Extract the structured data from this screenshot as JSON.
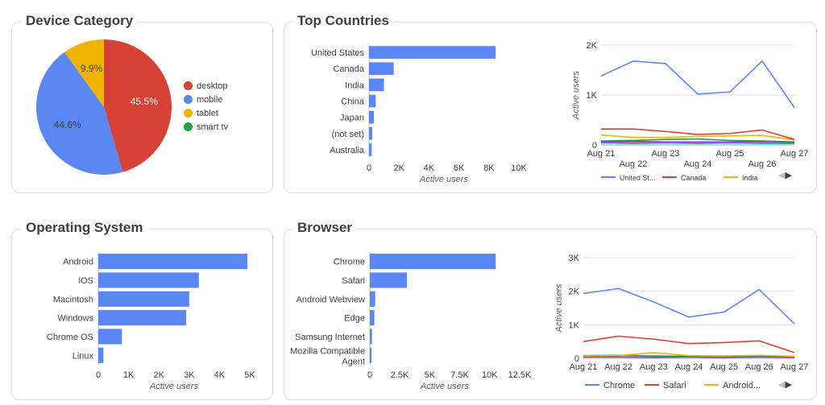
{
  "titles": {
    "device": "Device Category",
    "countries": "Top Countries",
    "os": "Operating System",
    "browser": "Browser"
  },
  "colors": {
    "blue": "#5b87f2",
    "red": "#d64236",
    "yellow": "#f0b400",
    "green": "#1e9e52",
    "grid": "#e0e0e0",
    "axis": "#5f6368"
  },
  "chart_data": [
    {
      "id": "device",
      "type": "pie",
      "title": "Device Category",
      "legend_position": "right",
      "categories": [
        "desktop",
        "mobile",
        "tablet",
        "smart tv"
      ],
      "values": [
        45.5,
        44.6,
        9.9,
        0.0
      ],
      "data_labels": [
        "45.5%",
        "44.6%",
        "9.9%",
        ""
      ],
      "colors": [
        "#d64236",
        "#5b87f2",
        "#f0b400",
        "#1e9e52"
      ]
    },
    {
      "id": "countries",
      "type": "bar",
      "orientation": "horizontal",
      "title": "Top Countries",
      "categories": [
        "United States",
        "Canada",
        "India",
        "China",
        "Japan",
        "(not set)",
        "Australia"
      ],
      "values": [
        8450,
        1650,
        1000,
        450,
        330,
        220,
        180
      ],
      "xlabel": "Active users",
      "xlim": [
        0,
        10000
      ],
      "xticks": [
        0,
        2000,
        4000,
        6000,
        8000,
        10000
      ],
      "xtick_labels": [
        "0",
        "2K",
        "4K",
        "6K",
        "8K",
        "10K"
      ],
      "grid": false
    },
    {
      "id": "countries_trend",
      "type": "line",
      "x": [
        "Aug 21",
        "Aug 22",
        "Aug 23",
        "Aug 24",
        "Aug 25",
        "Aug 26",
        "Aug 27"
      ],
      "ylabel": "Active users",
      "ylim": [
        0,
        2000
      ],
      "yticks": [
        0,
        1000,
        2000
      ],
      "ytick_labels": [
        "0",
        "1K",
        "2K"
      ],
      "grid": true,
      "legend_position": "bottom",
      "series": [
        {
          "name": "United St...",
          "color": "#5b87f2",
          "values": [
            1380,
            1680,
            1630,
            1020,
            1060,
            1680,
            750
          ]
        },
        {
          "name": "Canada",
          "color": "#d64236",
          "values": [
            320,
            320,
            270,
            210,
            230,
            300,
            110
          ]
        },
        {
          "name": "India",
          "color": "#f0b400",
          "values": [
            200,
            150,
            150,
            170,
            180,
            190,
            100
          ]
        },
        {
          "name": "",
          "color": "#1e9e52",
          "values": [
            80,
            90,
            110,
            120,
            90,
            80,
            60
          ]
        },
        {
          "name": "",
          "color": "#9334e6",
          "values": [
            60,
            70,
            60,
            60,
            60,
            70,
            50
          ]
        },
        {
          "name": "",
          "color": "#e8710a",
          "values": [
            50,
            40,
            50,
            40,
            50,
            50,
            40
          ]
        },
        {
          "name": "",
          "color": "#12b5cb",
          "values": [
            40,
            30,
            40,
            30,
            40,
            30,
            30
          ]
        }
      ]
    },
    {
      "id": "os",
      "type": "bar",
      "orientation": "horizontal",
      "title": "Operating System",
      "categories": [
        "Android",
        "iOS",
        "Macintosh",
        "Windows",
        "Chrome OS",
        "Linux"
      ],
      "values": [
        4920,
        3320,
        3000,
        2900,
        780,
        170
      ],
      "xlabel": "Active users",
      "xlim": [
        0,
        5000
      ],
      "xticks": [
        0,
        1000,
        2000,
        3000,
        4000,
        5000
      ],
      "xtick_labels": [
        "0",
        "1K",
        "2K",
        "3K",
        "4K",
        "5K"
      ],
      "grid": false
    },
    {
      "id": "browser",
      "type": "bar",
      "orientation": "horizontal",
      "title": "Browser",
      "categories": [
        "Chrome",
        "Safari",
        "Android Webview",
        "Edge",
        "Samsung Internet",
        "Mozilla Compatible Agent"
      ],
      "values": [
        10500,
        3100,
        450,
        380,
        180,
        140
      ],
      "xlabel": "Active users",
      "xlim": [
        0,
        12500
      ],
      "xticks": [
        0,
        2500,
        5000,
        7500,
        10000,
        12500
      ],
      "xtick_labels": [
        "0",
        "2.5K",
        "5K",
        "7.5K",
        "10K",
        "12.5K"
      ],
      "grid": false
    },
    {
      "id": "browser_trend",
      "type": "line",
      "x": [
        "Aug 21",
        "Aug 22",
        "Aug 23",
        "Aug 24",
        "Aug 25",
        "Aug 26",
        "Aug 27"
      ],
      "ylabel": "Active users",
      "ylim": [
        0,
        3000
      ],
      "yticks": [
        0,
        1000,
        2000,
        3000
      ],
      "ytick_labels": [
        "0",
        "1K",
        "2K",
        "3K"
      ],
      "grid": true,
      "legend_position": "bottom",
      "series": [
        {
          "name": "Chrome",
          "color": "#5b87f2",
          "values": [
            1930,
            2080,
            1680,
            1230,
            1380,
            2050,
            1030
          ]
        },
        {
          "name": "Safari",
          "color": "#d64236",
          "values": [
            500,
            660,
            570,
            440,
            470,
            520,
            170
          ]
        },
        {
          "name": "Android...",
          "color": "#f0b400",
          "values": [
            70,
            80,
            170,
            80,
            70,
            90,
            60
          ]
        },
        {
          "name": "",
          "color": "#1e9e52",
          "values": [
            80,
            90,
            70,
            60,
            60,
            80,
            50
          ]
        },
        {
          "name": "",
          "color": "#9334e6",
          "values": [
            40,
            40,
            30,
            40,
            30,
            40,
            30
          ]
        }
      ]
    }
  ]
}
